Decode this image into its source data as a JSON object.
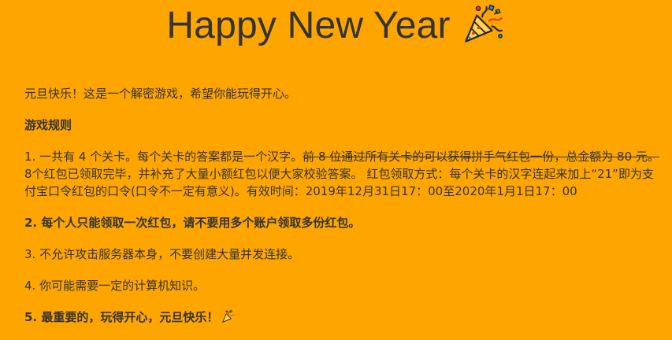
{
  "header": {
    "title": "Happy New Year",
    "icon": "party-popper-icon"
  },
  "content": {
    "intro": "元旦快乐！这是一个解密游戏，希望你能玩得开心。",
    "rules_heading": "游戏规则",
    "rule1_prefix": "1. 一共有 4 个关卡。每个关卡的答案都是一个汉字。",
    "rule1_strike": "前 8 位通过所有关卡的可以获得拼手气红包一份，总金额为 80 元。",
    "rule1_suffix": " 8个红包已领取完毕，并补充了大量小额红包以便大家校验答案。 红包领取方式：每个关卡的汉字连起来加上“21”即为支付宝口令红包的口令(口令不一定有意义)。有效时间：2019年12月31日17：00至2020年1月1日17：00",
    "rule2": "2. 每个人只能领取一次红包，请不要用多个账户领取多份红包。",
    "rule3": "3. 不允许攻击服务器本身，不要创建大量并发连接。",
    "rule4": "4. 你可能需要一定的计算机知识。",
    "rule5": "5. 最重要的，玩得开心，元旦快乐！"
  },
  "colors": {
    "background": "#FFA500",
    "text": "#333333"
  }
}
